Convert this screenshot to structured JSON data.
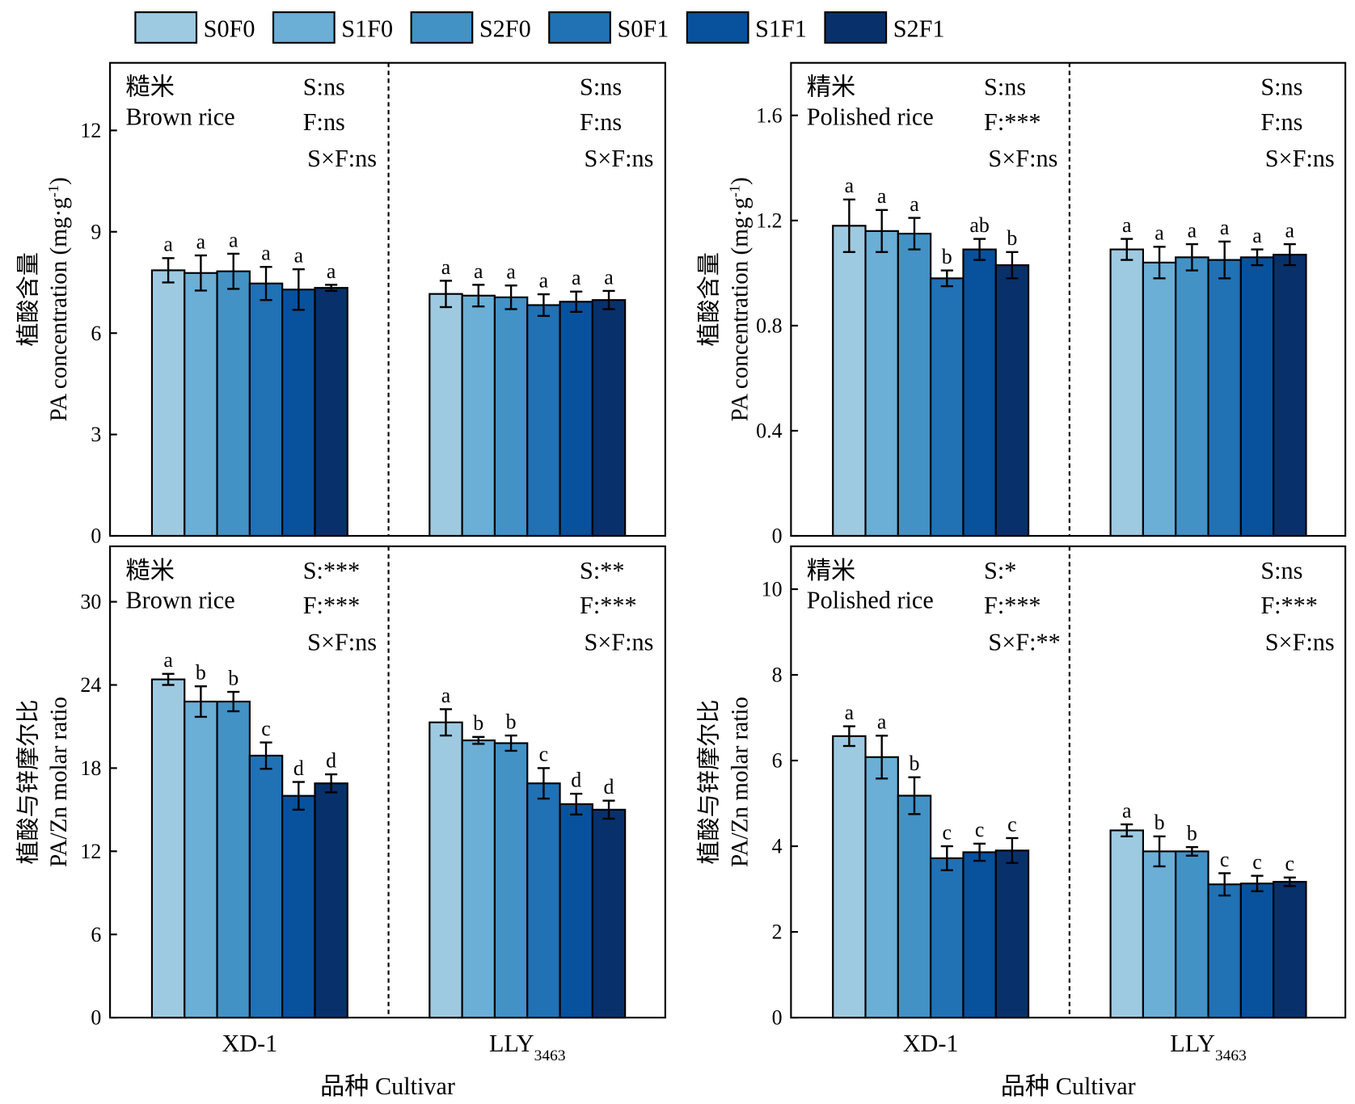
{
  "chart_data": [
    {
      "type": "bar",
      "panel_label": [
        "糙米",
        "Brown rice"
      ],
      "ylabel": {
        "cn": "植酸含量",
        "en": "PA concentration (mg·g",
        "sup": "-1",
        "tail": ")"
      },
      "ylim": [
        0,
        14
      ],
      "yticks": [
        0,
        3,
        6,
        9,
        12
      ],
      "categories": [
        {
          "text": "XD-1"
        },
        {
          "text": "LLY",
          "sub": "3463"
        }
      ],
      "significance": [
        [
          "S:ns",
          "F:ns",
          "S×F:ns"
        ],
        [
          "S:ns",
          "F:ns",
          "S×F:ns"
        ]
      ],
      "series": [
        {
          "name": "S0F0",
          "color": "#9ecae1",
          "values": [
            7.86,
            7.16
          ],
          "errors": [
            0.36,
            0.39
          ],
          "letters": [
            "a",
            "a"
          ]
        },
        {
          "name": "S1F0",
          "color": "#6baed6",
          "values": [
            7.78,
            7.11
          ],
          "errors": [
            0.52,
            0.32
          ],
          "letters": [
            "a",
            "a"
          ]
        },
        {
          "name": "S2F0",
          "color": "#4292c6",
          "values": [
            7.83,
            7.06
          ],
          "errors": [
            0.52,
            0.35
          ],
          "letters": [
            "a",
            "a"
          ]
        },
        {
          "name": "S0F1",
          "color": "#2171b5",
          "values": [
            7.47,
            6.83
          ],
          "errors": [
            0.49,
            0.32
          ],
          "letters": [
            "a",
            "a"
          ]
        },
        {
          "name": "S1F1",
          "color": "#08519c",
          "values": [
            7.29,
            6.93
          ],
          "errors": [
            0.6,
            0.3
          ],
          "letters": [
            "a",
            "a"
          ]
        },
        {
          "name": "S2F1",
          "color": "#08306b",
          "values": [
            7.34,
            6.98
          ],
          "errors": [
            0.09,
            0.27
          ],
          "letters": [
            "a",
            "a"
          ]
        }
      ]
    },
    {
      "type": "bar",
      "panel_label": [
        "精米",
        "Polished rice"
      ],
      "ylabel": {
        "cn": "植酸含量",
        "en": "PA concentration (mg·g",
        "sup": "-1",
        "tail": ")"
      },
      "ylim": [
        0,
        1.8
      ],
      "yticks": [
        0,
        0.4,
        0.8,
        1.2,
        1.6
      ],
      "categories": [
        {
          "text": "XD-1"
        },
        {
          "text": "LLY",
          "sub": "3463"
        }
      ],
      "significance": [
        [
          "S:ns",
          "F:***",
          "S×F:ns"
        ],
        [
          "S:ns",
          "F:ns",
          "S×F:ns"
        ]
      ],
      "series": [
        {
          "name": "S0F0",
          "color": "#9ecae1",
          "values": [
            1.18,
            1.09
          ],
          "errors": [
            0.1,
            0.04
          ],
          "letters": [
            "a",
            "a"
          ]
        },
        {
          "name": "S1F0",
          "color": "#6baed6",
          "values": [
            1.16,
            1.04
          ],
          "errors": [
            0.08,
            0.06
          ],
          "letters": [
            "a",
            "a"
          ]
        },
        {
          "name": "S2F0",
          "color": "#4292c6",
          "values": [
            1.15,
            1.06
          ],
          "errors": [
            0.06,
            0.05
          ],
          "letters": [
            "a",
            "a"
          ]
        },
        {
          "name": "S0F1",
          "color": "#2171b5",
          "values": [
            0.98,
            1.05
          ],
          "errors": [
            0.03,
            0.07
          ],
          "letters": [
            "b",
            "a"
          ]
        },
        {
          "name": "S1F1",
          "color": "#08519c",
          "values": [
            1.09,
            1.06
          ],
          "errors": [
            0.04,
            0.03
          ],
          "letters": [
            "ab",
            "a"
          ]
        },
        {
          "name": "S2F1",
          "color": "#08306b",
          "values": [
            1.03,
            1.07
          ],
          "errors": [
            0.05,
            0.04
          ],
          "letters": [
            "b",
            "a"
          ]
        }
      ]
    },
    {
      "type": "bar",
      "panel_label": [
        "糙米",
        "Brown rice"
      ],
      "ylabel": {
        "cn": "植酸与锌摩尔比",
        "en": "PA/Zn molar ratio"
      },
      "ylim": [
        0,
        34
      ],
      "yticks": [
        0,
        6,
        12,
        18,
        24,
        30
      ],
      "categories": [
        {
          "text": "XD-1"
        },
        {
          "text": "LLY",
          "sub": "3463"
        }
      ],
      "xlabel": "品种 Cultivar",
      "significance": [
        [
          "S:***",
          "F:***",
          "S×F:ns"
        ],
        [
          "S:**",
          "F:***",
          "S×F:ns"
        ]
      ],
      "series": [
        {
          "name": "S0F0",
          "color": "#9ecae1",
          "values": [
            24.4,
            21.3
          ],
          "errors": [
            0.4,
            0.95
          ],
          "letters": [
            "a",
            "a"
          ]
        },
        {
          "name": "S1F0",
          "color": "#6baed6",
          "values": [
            22.8,
            20.0
          ],
          "errors": [
            1.1,
            0.25
          ],
          "letters": [
            "b",
            "b"
          ]
        },
        {
          "name": "S2F0",
          "color": "#4292c6",
          "values": [
            22.8,
            19.8
          ],
          "errors": [
            0.7,
            0.55
          ],
          "letters": [
            "b",
            "b"
          ]
        },
        {
          "name": "S0F1",
          "color": "#2171b5",
          "values": [
            18.9,
            16.9
          ],
          "errors": [
            0.95,
            1.1
          ],
          "letters": [
            "c",
            "c"
          ]
        },
        {
          "name": "S1F1",
          "color": "#08519c",
          "values": [
            16.0,
            15.4
          ],
          "errors": [
            1.0,
            0.75
          ],
          "letters": [
            "d",
            "d"
          ]
        },
        {
          "name": "S2F1",
          "color": "#08306b",
          "values": [
            16.9,
            15.0
          ],
          "errors": [
            0.65,
            0.65
          ],
          "letters": [
            "d",
            "d"
          ]
        }
      ]
    },
    {
      "type": "bar",
      "panel_label": [
        "精米",
        "Polished rice"
      ],
      "ylabel": {
        "cn": "植酸与锌摩尔比",
        "en": "PA/Zn molar ratio"
      },
      "ylim": [
        0,
        11
      ],
      "yticks": [
        0,
        2,
        4,
        6,
        8,
        10
      ],
      "categories": [
        {
          "text": "XD-1"
        },
        {
          "text": "LLY",
          "sub": "3463"
        }
      ],
      "xlabel": "品种 Cultivar",
      "significance": [
        [
          "S:*",
          "F:***",
          "S×F:**"
        ],
        [
          "S:ns",
          "F:***",
          "S×F:ns"
        ]
      ],
      "series": [
        {
          "name": "S0F0",
          "color": "#9ecae1",
          "values": [
            6.57,
            4.37
          ],
          "errors": [
            0.23,
            0.14
          ],
          "letters": [
            "a",
            "a"
          ]
        },
        {
          "name": "S1F0",
          "color": "#6baed6",
          "values": [
            6.08,
            3.88
          ],
          "errors": [
            0.5,
            0.35
          ],
          "letters": [
            "a",
            "b"
          ]
        },
        {
          "name": "S2F0",
          "color": "#4292c6",
          "values": [
            5.18,
            3.88
          ],
          "errors": [
            0.43,
            0.1
          ],
          "letters": [
            "b",
            "b"
          ]
        },
        {
          "name": "S0F1",
          "color": "#2171b5",
          "values": [
            3.72,
            3.11
          ],
          "errors": [
            0.28,
            0.26
          ],
          "letters": [
            "c",
            "c"
          ]
        },
        {
          "name": "S1F1",
          "color": "#08519c",
          "values": [
            3.86,
            3.13
          ],
          "errors": [
            0.2,
            0.18
          ],
          "letters": [
            "c",
            "c"
          ]
        },
        {
          "name": "S2F1",
          "color": "#08306b",
          "values": [
            3.9,
            3.17
          ],
          "errors": [
            0.29,
            0.1
          ],
          "letters": [
            "c",
            "c"
          ]
        }
      ]
    }
  ]
}
